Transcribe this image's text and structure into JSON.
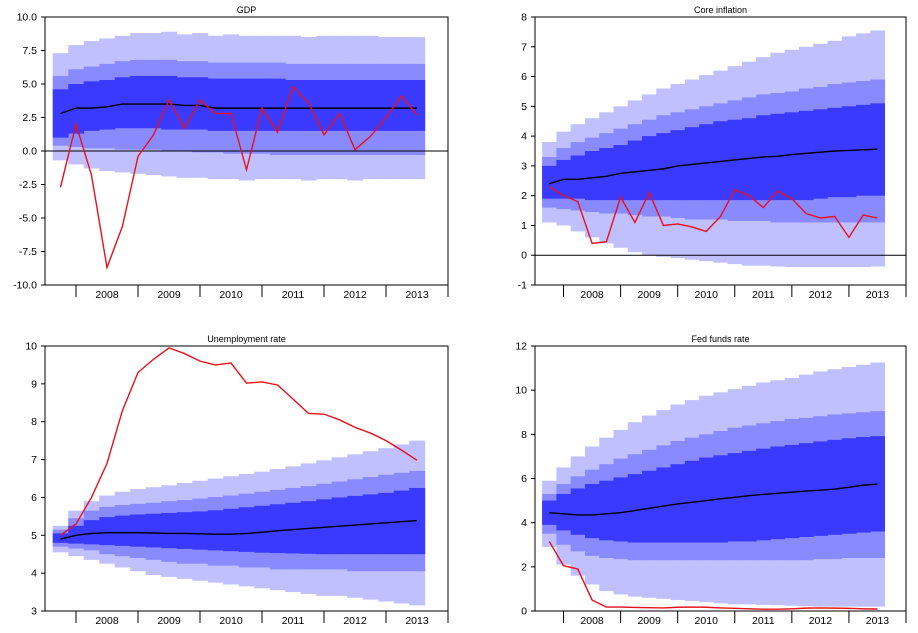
{
  "colors": {
    "band_outer": "#c0c0ff",
    "band_middle": "#8a8aff",
    "band_inner": "#3a3aff",
    "median": "#000000",
    "actual": "#e8101a",
    "frame": "#000000"
  },
  "chart_data": [
    {
      "type": "area",
      "title": "GDP",
      "x": [
        2007.75,
        2008.0,
        2008.25,
        2008.5,
        2008.75,
        2009.0,
        2009.25,
        2009.5,
        2009.75,
        2010.0,
        2010.25,
        2010.5,
        2010.75,
        2011.0,
        2011.25,
        2011.5,
        2011.75,
        2012.0,
        2012.25,
        2012.5,
        2012.75,
        2013.0,
        2013.25,
        2013.5
      ],
      "xticks": [
        2008,
        2009,
        2010,
        2011,
        2012,
        2013
      ],
      "xlim": [
        2007.5,
        2014.0
      ],
      "ylim": [
        -10,
        10
      ],
      "yticks": [
        -10.0,
        -7.5,
        -5.0,
        -2.5,
        0.0,
        2.5,
        5.0,
        7.5,
        10.0
      ],
      "ytick_labels": [
        "-10.0",
        "-7.5",
        "-5.0",
        "-2.5",
        "0.0",
        "2.5",
        "5.0",
        "7.5",
        "10.0"
      ],
      "zero_line": true,
      "median": [
        2.8,
        3.2,
        3.2,
        3.3,
        3.5,
        3.5,
        3.5,
        3.5,
        3.4,
        3.4,
        3.2,
        3.2,
        3.2,
        3.2,
        3.2,
        3.2,
        3.2,
        3.2,
        3.2,
        3.2,
        3.2,
        3.2,
        3.2,
        3.2
      ],
      "bands": {
        "outer_lower": [
          -0.7,
          -1.0,
          -1.3,
          -1.5,
          -1.6,
          -1.7,
          -1.8,
          -1.9,
          -2.0,
          -2.0,
          -2.1,
          -2.1,
          -2.2,
          -2.1,
          -2.1,
          -2.1,
          -2.2,
          -2.1,
          -2.1,
          -2.2,
          -2.1,
          -2.1,
          -2.1,
          -2.1
        ],
        "middle_lower": [
          0.4,
          0.3,
          0.2,
          0.2,
          0.1,
          0.1,
          0.1,
          0.0,
          0.0,
          -0.1,
          -0.1,
          -0.2,
          -0.2,
          -0.2,
          -0.3,
          -0.3,
          -0.3,
          -0.3,
          -0.3,
          -0.3,
          -0.3,
          -0.3,
          -0.3,
          -0.3
        ],
        "inner_lower": [
          1.0,
          1.3,
          1.5,
          1.6,
          1.7,
          1.7,
          1.7,
          1.6,
          1.6,
          1.6,
          1.5,
          1.5,
          1.5,
          1.5,
          1.5,
          1.5,
          1.5,
          1.5,
          1.5,
          1.5,
          1.5,
          1.5,
          1.5,
          1.5
        ],
        "inner_upper": [
          4.6,
          5.0,
          5.2,
          5.3,
          5.5,
          5.6,
          5.6,
          5.6,
          5.5,
          5.5,
          5.4,
          5.4,
          5.4,
          5.4,
          5.4,
          5.3,
          5.3,
          5.3,
          5.3,
          5.3,
          5.3,
          5.3,
          5.3,
          5.3
        ],
        "middle_upper": [
          5.6,
          6.1,
          6.3,
          6.5,
          6.7,
          6.8,
          6.8,
          6.8,
          6.7,
          6.7,
          6.6,
          6.6,
          6.6,
          6.6,
          6.6,
          6.5,
          6.5,
          6.5,
          6.5,
          6.5,
          6.5,
          6.5,
          6.5,
          6.5
        ],
        "outer_upper": [
          7.3,
          7.9,
          8.2,
          8.4,
          8.6,
          8.8,
          8.8,
          8.9,
          8.7,
          8.8,
          8.6,
          8.7,
          8.6,
          8.6,
          8.6,
          8.6,
          8.5,
          8.6,
          8.6,
          8.6,
          8.6,
          8.5,
          8.5,
          8.5
        ]
      },
      "actual": {
        "x": [
          2007.75,
          2008.0,
          2008.25,
          2008.5,
          2008.75,
          2009.0,
          2009.25,
          2009.5,
          2009.75,
          2010.0,
          2010.25,
          2010.5,
          2010.75,
          2011.0,
          2011.25,
          2011.5,
          2011.75,
          2012.0,
          2012.25,
          2012.5,
          2012.75,
          2013.0,
          2013.25,
          2013.5
        ],
        "y": [
          -2.7,
          2.0,
          -1.8,
          -8.7,
          -5.6,
          -0.4,
          1.2,
          3.8,
          1.7,
          3.8,
          2.8,
          2.8,
          -1.4,
          3.2,
          1.4,
          4.8,
          3.6,
          1.2,
          2.8,
          0.1,
          1.1,
          2.5,
          4.1,
          2.7
        ]
      }
    },
    {
      "type": "area",
      "title": "Core inflation",
      "x": [
        2007.75,
        2008.0,
        2008.25,
        2008.5,
        2008.75,
        2009.0,
        2009.25,
        2009.5,
        2009.75,
        2010.0,
        2010.25,
        2010.5,
        2010.75,
        2011.0,
        2011.25,
        2011.5,
        2011.75,
        2012.0,
        2012.25,
        2012.5,
        2012.75,
        2013.0,
        2013.25,
        2013.5
      ],
      "xticks": [
        2008,
        2009,
        2010,
        2011,
        2012,
        2013
      ],
      "xlim": [
        2007.5,
        2014.0
      ],
      "ylim": [
        -1,
        8
      ],
      "yticks": [
        -1,
        0,
        1,
        2,
        3,
        4,
        5,
        6,
        7,
        8
      ],
      "ytick_labels": [
        "-1",
        "0",
        "1",
        "2",
        "3",
        "4",
        "5",
        "6",
        "7",
        "8"
      ],
      "zero_line": true,
      "median": [
        2.4,
        2.55,
        2.55,
        2.6,
        2.65,
        2.75,
        2.8,
        2.85,
        2.9,
        3.0,
        3.05,
        3.1,
        3.15,
        3.2,
        3.25,
        3.3,
        3.32,
        3.38,
        3.42,
        3.46,
        3.5,
        3.52,
        3.54,
        3.56
      ],
      "bands": {
        "outer_lower": [
          1.1,
          1.0,
          0.8,
          0.6,
          0.4,
          0.25,
          0.1,
          0.0,
          -0.05,
          -0.1,
          -0.15,
          -0.2,
          -0.25,
          -0.3,
          -0.35,
          -0.35,
          -0.38,
          -0.4,
          -0.4,
          -0.4,
          -0.4,
          -0.4,
          -0.4,
          -0.38
        ],
        "middle_lower": [
          1.6,
          1.55,
          1.5,
          1.45,
          1.4,
          1.4,
          1.35,
          1.3,
          1.3,
          1.25,
          1.2,
          1.2,
          1.2,
          1.15,
          1.15,
          1.15,
          1.1,
          1.1,
          1.1,
          1.1,
          1.1,
          1.1,
          1.1,
          1.1
        ],
        "inner_lower": [
          1.9,
          1.9,
          1.9,
          1.85,
          1.85,
          1.85,
          1.85,
          1.85,
          1.85,
          1.85,
          1.85,
          1.85,
          1.85,
          1.85,
          1.85,
          1.85,
          1.85,
          1.85,
          1.85,
          1.9,
          1.95,
          1.95,
          2.0,
          2.0
        ],
        "inner_upper": [
          3.0,
          3.2,
          3.35,
          3.5,
          3.6,
          3.7,
          3.85,
          4.0,
          4.1,
          4.2,
          4.3,
          4.4,
          4.5,
          4.55,
          4.6,
          4.7,
          4.75,
          4.8,
          4.85,
          4.9,
          4.95,
          5.0,
          5.05,
          5.1
        ],
        "middle_upper": [
          3.3,
          3.6,
          3.8,
          3.95,
          4.1,
          4.25,
          4.4,
          4.55,
          4.7,
          4.8,
          4.9,
          5.0,
          5.1,
          5.2,
          5.3,
          5.4,
          5.45,
          5.5,
          5.6,
          5.65,
          5.75,
          5.8,
          5.85,
          5.9
        ],
        "outer_upper": [
          3.8,
          4.15,
          4.4,
          4.6,
          4.8,
          5.0,
          5.2,
          5.4,
          5.6,
          5.75,
          5.9,
          6.05,
          6.2,
          6.35,
          6.5,
          6.65,
          6.8,
          6.9,
          7.0,
          7.1,
          7.2,
          7.35,
          7.45,
          7.55
        ]
      },
      "actual": {
        "x": [
          2007.75,
          2008.0,
          2008.25,
          2008.5,
          2008.75,
          2009.0,
          2009.25,
          2009.5,
          2009.75,
          2010.0,
          2010.25,
          2010.5,
          2010.75,
          2011.0,
          2011.25,
          2011.5,
          2011.75,
          2012.0,
          2012.25,
          2012.5,
          2012.75,
          2013.0,
          2013.25,
          2013.5
        ],
        "y": [
          2.3,
          2.0,
          1.8,
          0.4,
          0.45,
          1.95,
          1.1,
          2.1,
          1.0,
          1.05,
          0.95,
          0.8,
          1.3,
          2.2,
          2.0,
          1.6,
          2.15,
          1.9,
          1.4,
          1.25,
          1.3,
          0.6,
          1.35,
          1.25
        ]
      }
    },
    {
      "type": "area",
      "title": "Unemployment rate",
      "x": [
        2007.75,
        2008.0,
        2008.25,
        2008.5,
        2008.75,
        2009.0,
        2009.25,
        2009.5,
        2009.75,
        2010.0,
        2010.25,
        2010.5,
        2010.75,
        2011.0,
        2011.25,
        2011.5,
        2011.75,
        2012.0,
        2012.25,
        2012.5,
        2012.75,
        2013.0,
        2013.25,
        2013.5
      ],
      "xticks": [
        2008,
        2009,
        2010,
        2011,
        2012,
        2013
      ],
      "xlim": [
        2007.5,
        2014.0
      ],
      "ylim": [
        3,
        10
      ],
      "yticks": [
        3,
        4,
        5,
        6,
        7,
        8,
        9,
        10
      ],
      "ytick_labels": [
        "3",
        "4",
        "5",
        "6",
        "7",
        "8",
        "9",
        "10"
      ],
      "zero_line": false,
      "median": [
        4.9,
        5.0,
        5.05,
        5.07,
        5.07,
        5.07,
        5.06,
        5.05,
        5.05,
        5.04,
        5.03,
        5.03,
        5.05,
        5.08,
        5.12,
        5.15,
        5.18,
        5.21,
        5.24,
        5.27,
        5.3,
        5.33,
        5.36,
        5.39
      ],
      "bands": {
        "outer_lower": [
          4.55,
          4.45,
          4.35,
          4.25,
          4.15,
          4.05,
          3.95,
          3.9,
          3.85,
          3.8,
          3.75,
          3.7,
          3.65,
          3.6,
          3.55,
          3.5,
          3.45,
          3.4,
          3.4,
          3.35,
          3.3,
          3.25,
          3.2,
          3.15
        ],
        "middle_lower": [
          4.7,
          4.65,
          4.6,
          4.5,
          4.45,
          4.4,
          4.35,
          4.3,
          4.25,
          4.25,
          4.2,
          4.2,
          4.15,
          4.15,
          4.1,
          4.1,
          4.1,
          4.1,
          4.1,
          4.05,
          4.05,
          4.05,
          4.05,
          4.05
        ],
        "inner_lower": [
          4.8,
          4.78,
          4.76,
          4.74,
          4.72,
          4.7,
          4.68,
          4.66,
          4.64,
          4.62,
          4.6,
          4.58,
          4.56,
          4.54,
          4.53,
          4.52,
          4.51,
          4.5,
          4.5,
          4.5,
          4.5,
          4.5,
          4.5,
          4.5
        ],
        "inner_upper": [
          5.05,
          5.25,
          5.4,
          5.48,
          5.52,
          5.55,
          5.57,
          5.59,
          5.61,
          5.63,
          5.66,
          5.7,
          5.74,
          5.78,
          5.82,
          5.86,
          5.9,
          5.95,
          6.0,
          6.04,
          6.08,
          6.12,
          6.18,
          6.25
        ],
        "middle_upper": [
          5.15,
          5.45,
          5.65,
          5.75,
          5.8,
          5.83,
          5.86,
          5.9,
          5.93,
          5.97,
          6.01,
          6.05,
          6.1,
          6.15,
          6.2,
          6.25,
          6.3,
          6.36,
          6.42,
          6.48,
          6.54,
          6.6,
          6.65,
          6.7
        ],
        "outer_upper": [
          5.25,
          5.65,
          5.9,
          6.05,
          6.15,
          6.22,
          6.27,
          6.32,
          6.38,
          6.44,
          6.5,
          6.56,
          6.62,
          6.68,
          6.75,
          6.82,
          6.9,
          6.98,
          7.06,
          7.14,
          7.22,
          7.3,
          7.4,
          7.5
        ]
      },
      "actual": {
        "x": [
          2007.75,
          2008.0,
          2008.25,
          2008.5,
          2008.75,
          2009.0,
          2009.25,
          2009.5,
          2009.75,
          2010.0,
          2010.25,
          2010.5,
          2010.75,
          2011.0,
          2011.25,
          2011.5,
          2011.75,
          2012.0,
          2012.25,
          2012.5,
          2012.75,
          2013.0,
          2013.25,
          2013.5
        ],
        "y": [
          5.0,
          5.3,
          6.0,
          6.9,
          8.3,
          9.3,
          9.65,
          9.95,
          9.8,
          9.6,
          9.5,
          9.55,
          9.02,
          9.05,
          8.97,
          8.6,
          8.22,
          8.2,
          8.05,
          7.85,
          7.7,
          7.5,
          7.25,
          6.98
        ]
      }
    },
    {
      "type": "area",
      "title": "Fed funds rate",
      "x": [
        2007.75,
        2008.0,
        2008.25,
        2008.5,
        2008.75,
        2009.0,
        2009.25,
        2009.5,
        2009.75,
        2010.0,
        2010.25,
        2010.5,
        2010.75,
        2011.0,
        2011.25,
        2011.5,
        2011.75,
        2012.0,
        2012.25,
        2012.5,
        2012.75,
        2013.0,
        2013.25,
        2013.5
      ],
      "xticks": [
        2008,
        2009,
        2010,
        2011,
        2012,
        2013
      ],
      "xlim": [
        2007.5,
        2014.0
      ],
      "ylim": [
        0,
        12
      ],
      "yticks": [
        0,
        2,
        4,
        6,
        8,
        10,
        12
      ],
      "ytick_labels": [
        "0",
        "2",
        "4",
        "6",
        "8",
        "10",
        "12"
      ],
      "zero_line": false,
      "median": [
        4.45,
        4.4,
        4.35,
        4.35,
        4.4,
        4.45,
        4.55,
        4.65,
        4.75,
        4.85,
        4.92,
        5.0,
        5.08,
        5.15,
        5.22,
        5.28,
        5.33,
        5.38,
        5.43,
        5.47,
        5.52,
        5.6,
        5.7,
        5.75
      ],
      "bands": {
        "outer_lower": [
          2.9,
          2.1,
          1.6,
          1.2,
          0.9,
          0.75,
          0.65,
          0.6,
          0.55,
          0.5,
          0.45,
          0.4,
          0.35,
          0.3,
          0.3,
          0.28,
          0.26,
          0.24,
          0.22,
          0.2,
          0.2,
          0.2,
          0.2,
          0.2
        ],
        "middle_lower": [
          3.5,
          3.0,
          2.7,
          2.5,
          2.4,
          2.35,
          2.3,
          2.3,
          2.3,
          2.3,
          2.3,
          2.3,
          2.3,
          2.3,
          2.3,
          2.3,
          2.3,
          2.3,
          2.3,
          2.35,
          2.35,
          2.4,
          2.4,
          2.4
        ],
        "inner_lower": [
          3.9,
          3.65,
          3.45,
          3.3,
          3.2,
          3.15,
          3.1,
          3.1,
          3.1,
          3.1,
          3.1,
          3.1,
          3.1,
          3.15,
          3.15,
          3.2,
          3.25,
          3.3,
          3.35,
          3.4,
          3.45,
          3.5,
          3.55,
          3.6
        ],
        "inner_upper": [
          5.0,
          5.3,
          5.55,
          5.75,
          5.9,
          6.05,
          6.2,
          6.35,
          6.5,
          6.65,
          6.8,
          6.95,
          7.05,
          7.15,
          7.25,
          7.35,
          7.45,
          7.52,
          7.6,
          7.68,
          7.75,
          7.82,
          7.88,
          7.92
        ],
        "middle_upper": [
          5.3,
          5.75,
          6.1,
          6.4,
          6.65,
          6.9,
          7.1,
          7.3,
          7.5,
          7.7,
          7.85,
          8.0,
          8.15,
          8.3,
          8.4,
          8.5,
          8.6,
          8.7,
          8.75,
          8.82,
          8.9,
          8.95,
          9.0,
          9.05
        ],
        "outer_upper": [
          5.9,
          6.5,
          7.0,
          7.45,
          7.85,
          8.2,
          8.55,
          8.85,
          9.1,
          9.35,
          9.55,
          9.75,
          9.9,
          10.05,
          10.2,
          10.35,
          10.45,
          10.55,
          10.7,
          10.85,
          10.95,
          11.05,
          11.15,
          11.25
        ]
      },
      "actual": {
        "x": [
          2007.75,
          2008.0,
          2008.25,
          2008.5,
          2008.75,
          2009.0,
          2009.25,
          2009.5,
          2009.75,
          2010.0,
          2010.25,
          2010.5,
          2010.75,
          2011.0,
          2011.25,
          2011.5,
          2011.75,
          2012.0,
          2012.25,
          2012.5,
          2012.75,
          2013.0,
          2013.25,
          2013.5
        ],
        "y": [
          3.15,
          2.05,
          1.9,
          0.5,
          0.18,
          0.18,
          0.16,
          0.15,
          0.14,
          0.17,
          0.18,
          0.17,
          0.14,
          0.12,
          0.1,
          0.08,
          0.08,
          0.1,
          0.13,
          0.14,
          0.13,
          0.12,
          0.1,
          0.09
        ]
      }
    }
  ]
}
